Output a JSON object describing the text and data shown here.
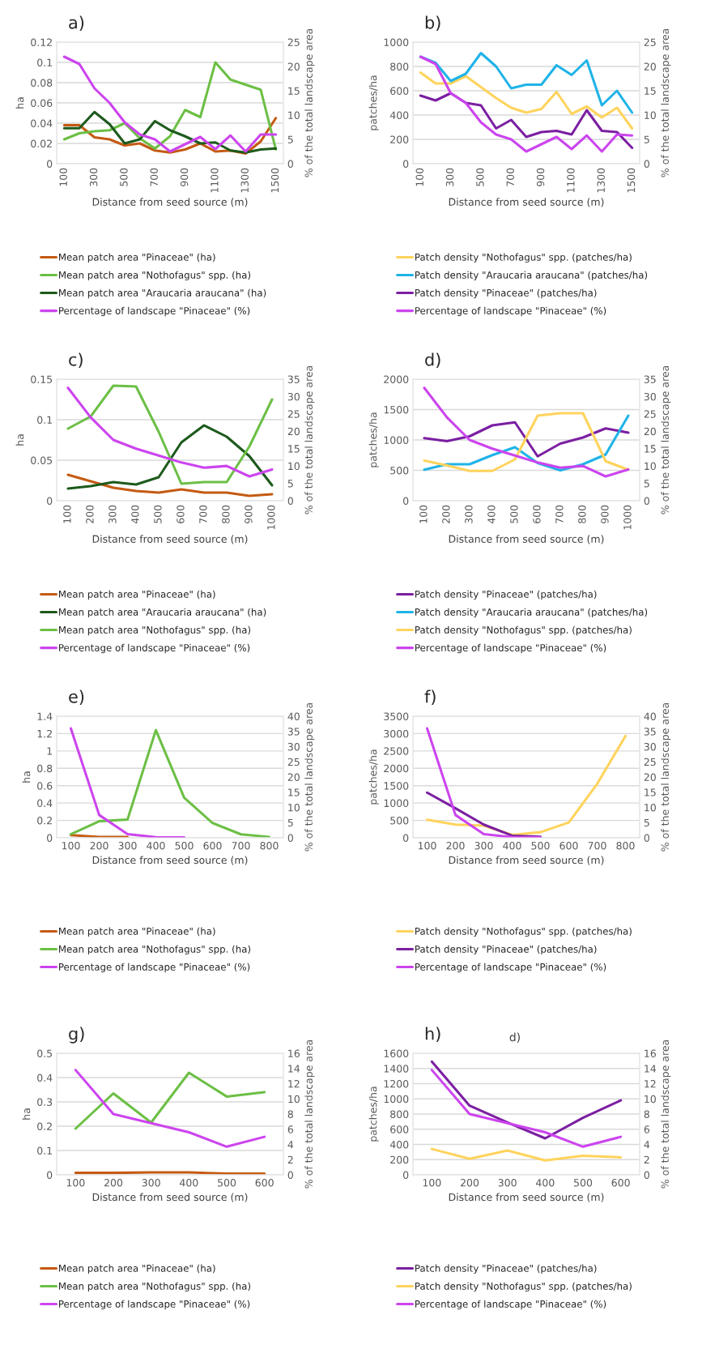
{
  "chart_data": [
    {
      "type": "line",
      "title": "a)",
      "xlabel": "Distance from seed source (m)",
      "ylabel": "ha",
      "y2label": "% of the total landscape area",
      "categories": [
        "100",
        null,
        "300",
        null,
        "500",
        null,
        "700",
        null,
        "900",
        null,
        "1100",
        null,
        "1300",
        null,
        "1500"
      ],
      "ylim": [
        0,
        0.12
      ],
      "yticks": [
        0,
        0.02,
        0.04,
        0.06,
        0.08,
        0.1,
        0.12
      ],
      "y2lim": [
        0,
        25
      ],
      "y2ticks": [
        0,
        5,
        10,
        15,
        20,
        25
      ],
      "grid": "y",
      "legend": "bottom",
      "series": [
        {
          "name": "Mean patch area \"Pinaceae\" (ha)",
          "color": "#c55a11",
          "values": [
            0.038,
            0.038,
            0.026,
            0.024,
            0.018,
            0.02,
            0.013,
            0.011,
            0.014,
            0.02,
            0.012,
            0.013,
            0.01,
            0.022,
            0.045
          ]
        },
        {
          "name": "Mean patch area \"Nothofagus\" spp. (ha)",
          "color": "#6cbf45",
          "values": [
            0.024,
            0.03,
            0.032,
            0.033,
            0.04,
            0.025,
            0.015,
            0.027,
            0.053,
            0.046,
            0.1,
            0.083,
            0.078,
            0.073,
            0.014
          ]
        },
        {
          "name": "Mean patch area \"Araucaria araucana\" (ha)",
          "color": "#1c5a1c",
          "values": [
            0.035,
            0.035,
            0.051,
            0.039,
            0.02,
            0.024,
            0.042,
            0.033,
            0.027,
            0.02,
            0.021,
            0.013,
            0.011,
            0.014,
            0.015
          ]
        },
        {
          "name": "Percentage of landscape \"Pinaceae\" (%)",
          "color": "#cc44ee",
          "axis": "y2",
          "values": [
            22,
            20.5,
            15.5,
            12.5,
            8.5,
            6,
            5,
            2.5,
            4,
            5.5,
            3,
            5.8,
            2.5,
            6,
            6
          ]
        }
      ]
    },
    {
      "type": "line",
      "title": "b)",
      "xlabel": "Distance from seed source (m)",
      "ylabel": "patches/ha",
      "y2label": "% of the total landscape area",
      "categories": [
        "100",
        null,
        "300",
        null,
        "500",
        null,
        "700",
        null,
        "900",
        null,
        "1100",
        null,
        "1300",
        null,
        "1500"
      ],
      "ylim": [
        0,
        1000
      ],
      "yticks": [
        0,
        200,
        400,
        600,
        800,
        1000
      ],
      "y2lim": [
        0,
        25
      ],
      "y2ticks": [
        0,
        5,
        10,
        15,
        20,
        25
      ],
      "grid": "y",
      "legend": "bottom",
      "series": [
        {
          "name": "Patch density \"Nothofagus\" spp. (patches/ha)",
          "color": "#ffd35c",
          "values": [
            750,
            660,
            660,
            720,
            630,
            540,
            460,
            420,
            450,
            590,
            410,
            470,
            380,
            460,
            290
          ]
        },
        {
          "name": "Patch density \"Araucaria araucana\" (patches/ha)",
          "color": "#1fb3e8",
          "values": [
            880,
            830,
            680,
            740,
            910,
            800,
            620,
            650,
            650,
            810,
            730,
            850,
            480,
            600,
            420
          ]
        },
        {
          "name": "Patch density \"Pinaceae\" (patches/ha)",
          "color": "#7b1fa2",
          "values": [
            560,
            520,
            580,
            500,
            480,
            290,
            360,
            220,
            260,
            270,
            240,
            440,
            270,
            260,
            130
          ]
        },
        {
          "name": "Percentage of landscape \"Pinaceae\" (%)",
          "color": "#cc44ee",
          "axis": "y2",
          "values": [
            22,
            20.5,
            14.5,
            12.5,
            8.5,
            6,
            5,
            2.5,
            4,
            5.5,
            3,
            5.8,
            2.5,
            6,
            5.8
          ]
        }
      ]
    },
    {
      "type": "line",
      "title": "c)",
      "xlabel": "Distance from seed source (m)",
      "ylabel": "ha",
      "y2label": "% of the total landscape area",
      "categories": [
        "100",
        "200",
        "300",
        "400",
        "500",
        "600",
        "700",
        "800",
        "900",
        "1000"
      ],
      "ylim": [
        0,
        0.15
      ],
      "yticks": [
        0,
        0.05,
        0.1,
        0.15
      ],
      "y2lim": [
        0,
        35
      ],
      "y2ticks": [
        0,
        5,
        10,
        15,
        20,
        25,
        30,
        35
      ],
      "grid": "y",
      "legend": "bottom",
      "series": [
        {
          "name": "Mean patch area \"Pinaceae\" (ha)",
          "color": "#c55a11",
          "values": [
            0.032,
            0.024,
            0.016,
            0.012,
            0.01,
            0.014,
            0.01,
            0.01,
            0.006,
            0.008
          ]
        },
        {
          "name": "Mean patch area \"Araucaria araucana\" (ha)",
          "color": "#1c5a1c",
          "values": [
            0.015,
            0.018,
            0.023,
            0.02,
            0.029,
            0.072,
            0.093,
            0.079,
            0.055,
            0.019
          ]
        },
        {
          "name": "Mean patch area \"Nothofagus\" spp. (ha)",
          "color": "#6cbf45",
          "values": [
            0.089,
            0.104,
            0.142,
            0.141,
            0.085,
            0.021,
            0.023,
            0.023,
            0.067,
            0.125
          ]
        },
        {
          "name": "Percentage of landscape \"Pinaceae\" (%)",
          "color": "#cc44ee",
          "axis": "y2",
          "values": [
            32.5,
            24,
            17.5,
            15,
            13,
            11,
            9.5,
            10,
            7,
            9
          ]
        }
      ]
    },
    {
      "type": "line",
      "title": "d)",
      "xlabel": "Distance from seed source (m)",
      "ylabel": "patches/ha",
      "y2label": "% of the total landscape area",
      "categories": [
        "100",
        "200",
        "300",
        "400",
        "500",
        "600",
        "700",
        "800",
        "900",
        "1000"
      ],
      "ylim": [
        0,
        2000
      ],
      "yticks": [
        0,
        500,
        1000,
        1500,
        2000
      ],
      "y2lim": [
        0,
        35
      ],
      "y2ticks": [
        0,
        5,
        10,
        15,
        20,
        25,
        30,
        35
      ],
      "grid": "y",
      "legend": "bottom",
      "series": [
        {
          "name": "Patch density \"Pinaceae\" (patches/ha)",
          "color": "#7b1fa2",
          "values": [
            1030,
            980,
            1060,
            1240,
            1290,
            730,
            940,
            1040,
            1190,
            1120
          ]
        },
        {
          "name": "Patch density \"Araucaria araucana\" (patches/ha)",
          "color": "#1fb3e8",
          "values": [
            510,
            600,
            600,
            750,
            880,
            620,
            500,
            600,
            760,
            1400
          ]
        },
        {
          "name": "Patch density \"Nothofagus\" spp. (patches/ha)",
          "color": "#ffd35c",
          "values": [
            660,
            580,
            490,
            490,
            680,
            1400,
            1440,
            1440,
            650,
            510
          ]
        },
        {
          "name": "Percentage of landscape \"Pinaceae\" (%)",
          "color": "#cc44ee",
          "axis": "y2",
          "values": [
            32.5,
            24,
            17.5,
            15,
            13,
            11,
            9.5,
            10,
            7,
            9
          ]
        }
      ]
    },
    {
      "type": "line",
      "title": "e)",
      "xlabel": "Distance from seed source (m)",
      "ylabel": "ha",
      "y2label": "% of the total landscape area",
      "categories": [
        "100",
        "200",
        "300",
        "400",
        "500",
        "600",
        "700",
        "800"
      ],
      "ylim": [
        0,
        1.4
      ],
      "yticks": [
        0,
        0.2,
        0.4,
        0.6,
        0.8,
        1,
        1.2,
        1.4
      ],
      "y2lim": [
        0,
        40
      ],
      "y2ticks": [
        0,
        5,
        10,
        15,
        20,
        25,
        30,
        35,
        40
      ],
      "grid": "y",
      "legend": "bottom",
      "series": [
        {
          "name": "Mean patch area \"Pinaceae\" (ha)",
          "color": "#c55a11",
          "values": [
            0.03,
            0.01,
            0.01,
            null,
            null,
            null,
            null,
            null
          ]
        },
        {
          "name": "Mean patch area \"Nothofagus\" spp. (ha)",
          "color": "#6cbf45",
          "values": [
            0.04,
            0.19,
            0.21,
            1.24,
            0.46,
            0.17,
            0.04,
            0.01
          ]
        },
        {
          "name": "Percentage of landscape \"Pinaceae\" (%)",
          "color": "#cc44ee",
          "axis": "y2",
          "values": [
            36,
            7.5,
            1.2,
            0.2,
            0.1,
            null,
            null,
            null
          ]
        }
      ]
    },
    {
      "type": "line",
      "title": "f)",
      "xlabel": "Distance from seed source (m)",
      "ylabel": "patches/ha",
      "y2label": "% of the total landscape area",
      "categories": [
        "100",
        "200",
        "300",
        "400",
        "500",
        "600",
        "700",
        "800"
      ],
      "ylim": [
        0,
        3500
      ],
      "yticks": [
        0,
        500,
        1000,
        1500,
        2000,
        2500,
        3000,
        3500
      ],
      "y2lim": [
        0,
        40
      ],
      "y2ticks": [
        0,
        5,
        10,
        15,
        20,
        25,
        30,
        35,
        40
      ],
      "grid": "y",
      "legend": "bottom",
      "series": [
        {
          "name": "Patch density \"Nothofagus\" spp. (patches/ha)",
          "color": "#ffd35c",
          "values": [
            520,
            380,
            350,
            80,
            160,
            440,
            1550,
            2930
          ]
        },
        {
          "name": "Patch density \"Pinaceae\" (patches/ha)",
          "color": "#7b1fa2",
          "values": [
            1300,
            850,
            380,
            60,
            30,
            null,
            null,
            null
          ]
        },
        {
          "name": "Percentage of landscape \"Pinaceae\" (%)",
          "color": "#cc44ee",
          "axis": "y2",
          "values": [
            36,
            7.5,
            1.2,
            0.2,
            0.1,
            null,
            null,
            null
          ]
        }
      ]
    },
    {
      "type": "line",
      "title": "g)",
      "xlabel": "Distance from seed source (m)",
      "ylabel": "ha",
      "y2label": "% of the total landscape area",
      "categories": [
        "100",
        "200",
        "300",
        "400",
        "500",
        "600"
      ],
      "ylim": [
        0,
        0.5
      ],
      "yticks": [
        0,
        0.1,
        0.2,
        0.3,
        0.4,
        0.5
      ],
      "y2lim": [
        0,
        16
      ],
      "y2ticks": [
        0,
        2,
        4,
        6,
        8,
        10,
        12,
        14,
        16
      ],
      "grid": "y",
      "legend": "bottom",
      "series": [
        {
          "name": "Mean patch area \"Pinaceae\" (ha)",
          "color": "#c55a11",
          "values": [
            0.008,
            0.008,
            0.01,
            0.01,
            0.005,
            0.005
          ]
        },
        {
          "name": "Mean patch area \"Nothofagus\" spp. (ha)",
          "color": "#6cbf45",
          "values": [
            0.19,
            0.335,
            0.215,
            0.42,
            0.322,
            0.34
          ]
        },
        {
          "name": "Percentage of landscape \"Pinaceae\" (%)",
          "color": "#cc44ee",
          "axis": "y2",
          "values": [
            13.8,
            8,
            6.8,
            5.6,
            3.7,
            5
          ]
        }
      ]
    },
    {
      "type": "line",
      "title": "h)",
      "xlabel": "Distance from seed source (m)",
      "ylabel": "patches/ha",
      "y2label": "% of the total landscape area",
      "annotations": [
        "d)"
      ],
      "categories": [
        "100",
        "200",
        "300",
        "400",
        "500",
        "600"
      ],
      "ylim": [
        0,
        1600
      ],
      "yticks": [
        0,
        200,
        400,
        600,
        800,
        1000,
        1200,
        1400,
        1600
      ],
      "y2lim": [
        0,
        16
      ],
      "y2ticks": [
        0,
        2,
        4,
        6,
        8,
        10,
        12,
        14,
        16
      ],
      "grid": "y",
      "legend": "bottom",
      "series": [
        {
          "name": "Patch density \"Pinaceae\" (patches/ha)",
          "color": "#7b1fa2",
          "values": [
            1490,
            910,
            690,
            480,
            750,
            980
          ]
        },
        {
          "name": "Patch density \"Nothofagus\" spp. (patches/ha)",
          "color": "#ffd35c",
          "values": [
            340,
            210,
            320,
            190,
            250,
            230
          ]
        },
        {
          "name": "Percentage of landscape \"Pinaceae\" (%)",
          "color": "#cc44ee",
          "axis": "y2",
          "values": [
            13.8,
            8,
            6.8,
            5.6,
            3.7,
            5
          ]
        }
      ]
    }
  ]
}
